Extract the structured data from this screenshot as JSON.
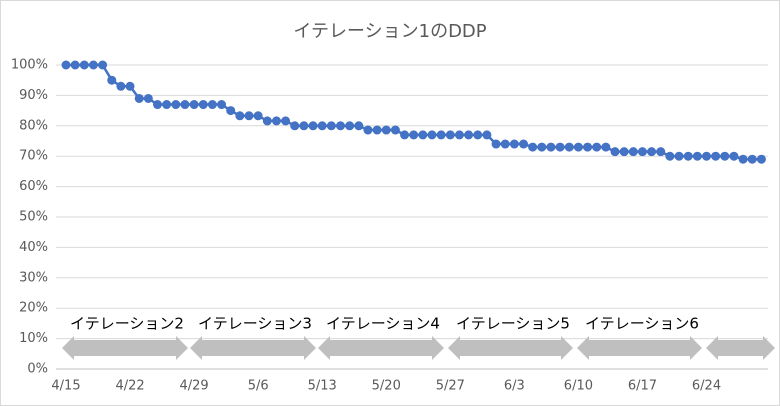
{
  "chart_data": {
    "type": "line",
    "title": "イテレーション1のDDP",
    "categories": [
      "4/15",
      null,
      null,
      null,
      null,
      null,
      null,
      "4/22",
      null,
      null,
      null,
      null,
      null,
      null,
      "4/29",
      null,
      null,
      null,
      null,
      null,
      null,
      "5/6",
      null,
      null,
      null,
      null,
      null,
      null,
      "5/13",
      null,
      null,
      null,
      null,
      null,
      null,
      "5/20",
      null,
      null,
      null,
      null,
      null,
      null,
      "5/27",
      null,
      null,
      null,
      null,
      null,
      null,
      "6/3",
      null,
      null,
      null,
      null,
      null,
      null,
      "6/10",
      null,
      null,
      null,
      null,
      null,
      null,
      "6/17",
      null,
      null,
      null,
      null,
      null,
      null,
      "6/24",
      null,
      null,
      null,
      null,
      null,
      null
    ],
    "values": [
      100,
      100,
      100,
      100,
      100,
      95,
      93,
      93,
      89,
      89,
      87,
      87,
      87,
      87,
      87,
      87,
      87,
      87,
      85,
      83.3,
      83.3,
      83.3,
      81.6,
      81.6,
      81.6,
      80,
      80,
      80,
      80,
      80,
      80,
      80,
      80,
      78.6,
      78.6,
      78.6,
      78.6,
      77,
      77,
      77,
      77,
      77,
      77,
      77,
      77,
      77,
      77,
      74,
      74,
      74,
      74,
      73,
      73,
      73,
      73,
      73,
      73,
      73,
      73,
      73,
      71.5,
      71.5,
      71.5,
      71.5,
      71.5,
      71.5,
      70,
      70,
      70,
      70,
      70,
      70,
      70,
      70,
      69,
      69,
      69
    ],
    "color": "#4472c4",
    "ylim": [
      0,
      100
    ],
    "yticks": [
      {
        "value": 0,
        "label": "0%"
      },
      {
        "value": 10,
        "label": "10%"
      },
      {
        "value": 20,
        "label": "20%"
      },
      {
        "value": 30,
        "label": "30%"
      },
      {
        "value": 40,
        "label": "40%"
      },
      {
        "value": 50,
        "label": "50%"
      },
      {
        "value": 60,
        "label": "60%"
      },
      {
        "value": 70,
        "label": "70%"
      },
      {
        "value": 80,
        "label": "80%"
      },
      {
        "value": 90,
        "label": "90%"
      },
      {
        "value": 100,
        "label": "100%"
      }
    ],
    "grid": true,
    "annotations": [
      "イテレーション2",
      "イテレーション3",
      "イテレーション4",
      "イテレーション5",
      "イテレーション6"
    ]
  }
}
